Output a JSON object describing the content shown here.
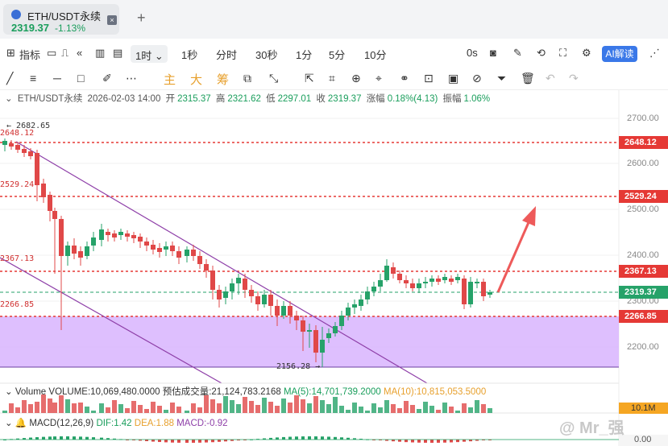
{
  "tab": {
    "symbol": "ETH/USDT永续",
    "price": "2319.37",
    "change": "-1.13%",
    "close": "×",
    "add": "+"
  },
  "toolbar": {
    "indicator": "指标",
    "interval": "1时",
    "intervals": [
      "1秒",
      "分时",
      "30秒",
      "1分",
      "5分",
      "10分"
    ],
    "countdown": "0s",
    "ai": "AI解读"
  },
  "drawing_tools": {
    "labels": [
      "主",
      "大",
      "筹"
    ]
  },
  "info": {
    "symbol": "ETH/USDT永续",
    "datetime": "2026-02-03 14:00",
    "open_label": "开",
    "open": "2315.37",
    "high_label": "高",
    "high": "2321.62",
    "low_label": "低",
    "low": "2297.01",
    "close_label": "收",
    "close": "2319.37",
    "chg_label": "涨幅",
    "chg": "0.18%(4.13)",
    "amp_label": "振幅",
    "amp": "1.06%"
  },
  "price_axis": [
    "2700.00",
    "2600.00",
    "2500.00",
    "2400.00",
    "2300.00",
    "2200.00"
  ],
  "price_tags": {
    "p1": "2648.12",
    "p2": "2529.24",
    "p3": "2367.13",
    "p4": "2319.37",
    "p5": "2266.85"
  },
  "plot_labels": {
    "high": "2682.65",
    "l1": "2648.12",
    "l2": "2529.24",
    "l3": "2367.13",
    "l4": "2266.85",
    "low": "2156.28"
  },
  "volume": {
    "label": "Volume",
    "vol": "VOLUME:10,069,480.0000",
    "est": "预估成交量:21,124,783.2168",
    "ma5": "MA(5):14,701,739.2000",
    "ma10": "MA(10):10,815,053.5000",
    "tag": "10.1M"
  },
  "macd": {
    "label": "MACD(12,26,9)",
    "dif": "DIF:1.42",
    "dea": "DEA:1.88",
    "macd": "MACD:-0.92",
    "tag": "0.00"
  },
  "watermark": "@ Mr_强",
  "colors": {
    "up": "#26a269",
    "down": "#e04848",
    "zone": "#d8b4fe",
    "level": "#e53935"
  }
}
